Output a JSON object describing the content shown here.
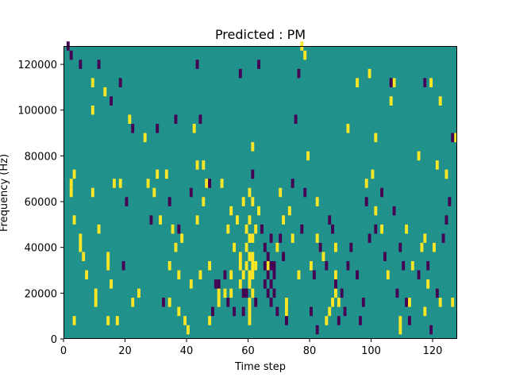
{
  "chart_data": {
    "type": "heatmap",
    "title": "Predicted : PM",
    "xlabel": "Time step",
    "ylabel": "Frequency (Hz)",
    "xlim": [
      0,
      128
    ],
    "ylim": [
      0,
      128000
    ],
    "grid": false,
    "x_ticks": [
      0,
      20,
      40,
      60,
      80,
      100,
      120
    ],
    "x_tick_labels": [
      "0",
      "20",
      "40",
      "60",
      "80",
      "100",
      "120"
    ],
    "y_ticks": [
      0,
      20000,
      40000,
      60000,
      80000,
      100000,
      120000
    ],
    "y_tick_labels": [
      "0",
      "20000",
      "40000",
      "60000",
      "80000",
      "100000",
      "120000"
    ],
    "colors": {
      "background": "#21918c",
      "high": "#fde725",
      "low": "#440154"
    },
    "cell_height": 4000,
    "cells_high": [
      [
        2,
        66000
      ],
      [
        2,
        62000
      ],
      [
        3,
        70000
      ],
      [
        3,
        50000
      ],
      [
        3,
        6000
      ],
      [
        5,
        42000
      ],
      [
        5,
        38000
      ],
      [
        6,
        34000
      ],
      [
        7,
        26000
      ],
      [
        9,
        110000
      ],
      [
        9,
        98000
      ],
      [
        9,
        62000
      ],
      [
        10,
        18000
      ],
      [
        10,
        14000
      ],
      [
        11,
        46000
      ],
      [
        13,
        106000
      ],
      [
        14,
        34000
      ],
      [
        14,
        30000
      ],
      [
        14,
        6000
      ],
      [
        15,
        22000
      ],
      [
        16,
        66000
      ],
      [
        17,
        6000
      ],
      [
        18,
        66000
      ],
      [
        21,
        94000
      ],
      [
        22,
        14000
      ],
      [
        24,
        18000
      ],
      [
        26,
        86000
      ],
      [
        27,
        66000
      ],
      [
        29,
        62000
      ],
      [
        30,
        70000
      ],
      [
        31,
        50000
      ],
      [
        33,
        70000
      ],
      [
        34,
        30000
      ],
      [
        34,
        14000
      ],
      [
        35,
        46000
      ],
      [
        36,
        38000
      ],
      [
        37,
        26000
      ],
      [
        37,
        10000
      ],
      [
        38,
        42000
      ],
      [
        39,
        6000
      ],
      [
        40,
        2000
      ],
      [
        41,
        22000
      ],
      [
        42,
        90000
      ],
      [
        43,
        74000
      ],
      [
        43,
        50000
      ],
      [
        44,
        26000
      ],
      [
        45,
        74000
      ],
      [
        45,
        58000
      ],
      [
        46,
        66000
      ],
      [
        47,
        30000
      ],
      [
        47,
        6000
      ],
      [
        50,
        18000
      ],
      [
        50,
        14000
      ],
      [
        51,
        66000
      ],
      [
        52,
        18000
      ],
      [
        53,
        46000
      ],
      [
        54,
        54000
      ],
      [
        54,
        26000
      ],
      [
        54,
        18000
      ],
      [
        55,
        38000
      ],
      [
        56,
        50000
      ],
      [
        57,
        34000
      ],
      [
        57,
        30000
      ],
      [
        57,
        22000
      ],
      [
        58,
        58000
      ],
      [
        58,
        26000
      ],
      [
        59,
        46000
      ],
      [
        59,
        38000
      ],
      [
        59,
        30000
      ],
      [
        60,
        62000
      ],
      [
        60,
        50000
      ],
      [
        60,
        42000
      ],
      [
        60,
        34000
      ],
      [
        60,
        26000
      ],
      [
        60,
        22000
      ],
      [
        60,
        14000
      ],
      [
        60,
        10000
      ],
      [
        60,
        6000
      ],
      [
        61,
        82000
      ],
      [
        61,
        58000
      ],
      [
        61,
        42000
      ],
      [
        61,
        34000
      ],
      [
        61,
        30000
      ],
      [
        61,
        26000
      ],
      [
        61,
        18000
      ],
      [
        62,
        46000
      ],
      [
        62,
        30000
      ],
      [
        63,
        54000
      ],
      [
        66,
        30000
      ],
      [
        69,
        38000
      ],
      [
        70,
        62000
      ],
      [
        71,
        50000
      ],
      [
        72,
        14000
      ],
      [
        72,
        10000
      ],
      [
        73,
        54000
      ],
      [
        74,
        42000
      ],
      [
        76,
        26000
      ],
      [
        77,
        126000
      ],
      [
        78,
        122000
      ],
      [
        79,
        78000
      ],
      [
        80,
        30000
      ],
      [
        82,
        58000
      ],
      [
        82,
        42000
      ],
      [
        83,
        38000
      ],
      [
        84,
        34000
      ],
      [
        85,
        6000
      ],
      [
        86,
        10000
      ],
      [
        87,
        14000
      ],
      [
        88,
        38000
      ],
      [
        88,
        26000
      ],
      [
        88,
        18000
      ],
      [
        89,
        14000
      ],
      [
        92,
        90000
      ],
      [
        95,
        110000
      ],
      [
        98,
        66000
      ],
      [
        99,
        114000
      ],
      [
        100,
        70000
      ],
      [
        101,
        86000
      ],
      [
        101,
        54000
      ],
      [
        103,
        46000
      ],
      [
        105,
        26000
      ],
      [
        106,
        102000
      ],
      [
        107,
        110000
      ],
      [
        109,
        6000
      ],
      [
        109,
        2000
      ],
      [
        111,
        46000
      ],
      [
        112,
        14000
      ],
      [
        113,
        30000
      ],
      [
        115,
        78000
      ],
      [
        116,
        38000
      ],
      [
        117,
        42000
      ],
      [
        117,
        10000
      ],
      [
        118,
        22000
      ],
      [
        119,
        110000
      ],
      [
        120,
        38000
      ],
      [
        121,
        74000
      ],
      [
        122,
        102000
      ],
      [
        122,
        14000
      ],
      [
        124,
        70000
      ],
      [
        126,
        14000
      ],
      [
        127,
        86000
      ]
    ],
    "cells_low": [
      [
        1,
        126000
      ],
      [
        2,
        122000
      ],
      [
        5,
        118000
      ],
      [
        11,
        118000
      ],
      [
        15,
        102000
      ],
      [
        18,
        110000
      ],
      [
        19,
        30000
      ],
      [
        20,
        58000
      ],
      [
        22,
        90000
      ],
      [
        28,
        50000
      ],
      [
        30,
        90000
      ],
      [
        32,
        14000
      ],
      [
        34,
        58000
      ],
      [
        36,
        94000
      ],
      [
        37,
        46000
      ],
      [
        41,
        62000
      ],
      [
        43,
        118000
      ],
      [
        44,
        94000
      ],
      [
        47,
        66000
      ],
      [
        48,
        10000
      ],
      [
        49,
        22000
      ],
      [
        50,
        22000
      ],
      [
        52,
        26000
      ],
      [
        53,
        14000
      ],
      [
        55,
        10000
      ],
      [
        57,
        114000
      ],
      [
        58,
        18000
      ],
      [
        58,
        10000
      ],
      [
        59,
        18000
      ],
      [
        61,
        70000
      ],
      [
        62,
        14000
      ],
      [
        63,
        118000
      ],
      [
        64,
        46000
      ],
      [
        65,
        38000
      ],
      [
        65,
        30000
      ],
      [
        65,
        22000
      ],
      [
        66,
        34000
      ],
      [
        66,
        26000
      ],
      [
        66,
        18000
      ],
      [
        67,
        42000
      ],
      [
        67,
        30000
      ],
      [
        67,
        22000
      ],
      [
        67,
        14000
      ],
      [
        68,
        30000
      ],
      [
        68,
        26000
      ],
      [
        68,
        18000
      ],
      [
        69,
        10000
      ],
      [
        70,
        42000
      ],
      [
        71,
        34000
      ],
      [
        72,
        6000
      ],
      [
        74,
        66000
      ],
      [
        75,
        94000
      ],
      [
        76,
        114000
      ],
      [
        77,
        46000
      ],
      [
        78,
        62000
      ],
      [
        80,
        10000
      ],
      [
        81,
        26000
      ],
      [
        82,
        2000
      ],
      [
        83,
        38000
      ],
      [
        85,
        30000
      ],
      [
        86,
        50000
      ],
      [
        87,
        46000
      ],
      [
        88,
        22000
      ],
      [
        89,
        6000
      ],
      [
        90,
        18000
      ],
      [
        91,
        10000
      ],
      [
        92,
        30000
      ],
      [
        93,
        38000
      ],
      [
        95,
        26000
      ],
      [
        96,
        6000
      ],
      [
        97,
        14000
      ],
      [
        98,
        58000
      ],
      [
        99,
        42000
      ],
      [
        101,
        46000
      ],
      [
        103,
        62000
      ],
      [
        104,
        34000
      ],
      [
        106,
        110000
      ],
      [
        107,
        54000
      ],
      [
        108,
        18000
      ],
      [
        109,
        38000
      ],
      [
        110,
        30000
      ],
      [
        111,
        14000
      ],
      [
        112,
        6000
      ],
      [
        115,
        26000
      ],
      [
        117,
        110000
      ],
      [
        118,
        30000
      ],
      [
        119,
        2000
      ],
      [
        121,
        18000
      ],
      [
        123,
        42000
      ],
      [
        124,
        50000
      ],
      [
        125,
        58000
      ],
      [
        126,
        86000
      ]
    ]
  }
}
